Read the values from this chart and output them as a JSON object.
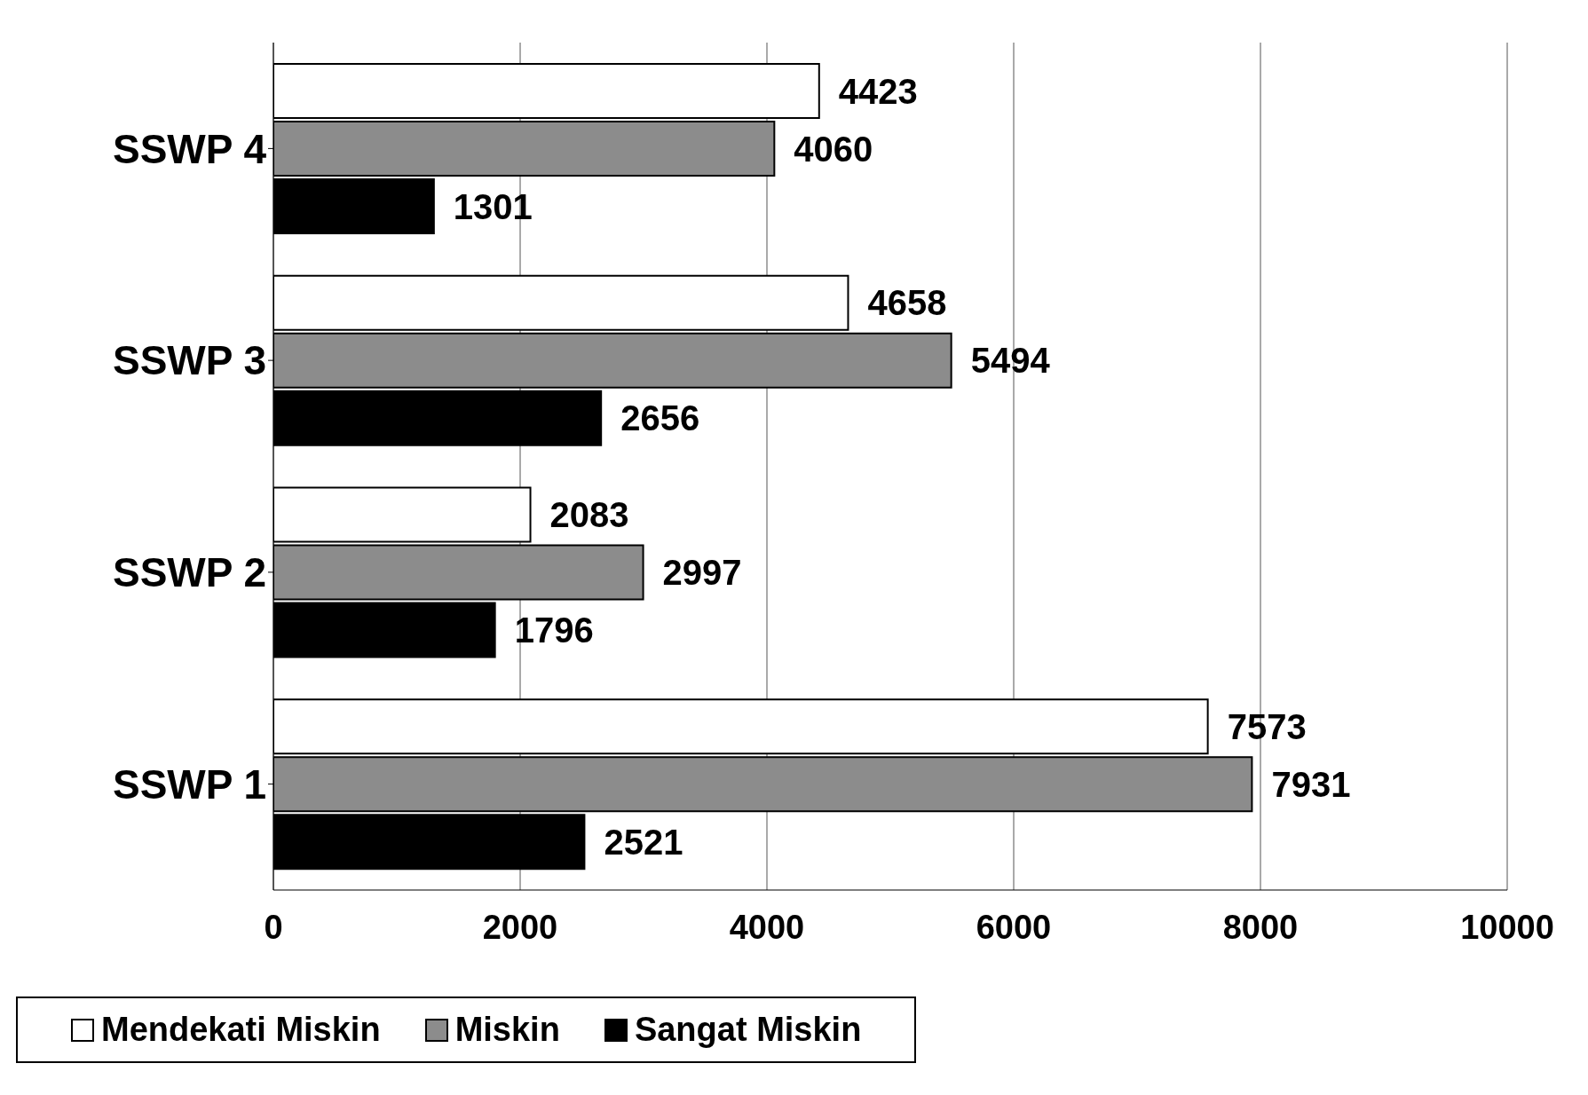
{
  "chart_data": {
    "type": "bar",
    "orientation": "horizontal",
    "categories": [
      "SSWP 4",
      "SSWP 3",
      "SSWP 2",
      "SSWP 1"
    ],
    "series": [
      {
        "name": "Mendekati Miskin",
        "color": "#ffffff",
        "values": [
          4423,
          4658,
          2083,
          7573
        ]
      },
      {
        "name": "Miskin",
        "color": "#8c8c8c",
        "values": [
          4060,
          5494,
          2997,
          7931
        ]
      },
      {
        "name": "Sangat Miskin",
        "color": "#000000",
        "values": [
          1301,
          2656,
          1796,
          2521
        ]
      }
    ],
    "xlim": [
      0,
      10000
    ],
    "xticks": [
      0,
      2000,
      4000,
      6000,
      8000,
      10000
    ],
    "grid": "x",
    "legend": "bottom",
    "data_labels": true
  }
}
